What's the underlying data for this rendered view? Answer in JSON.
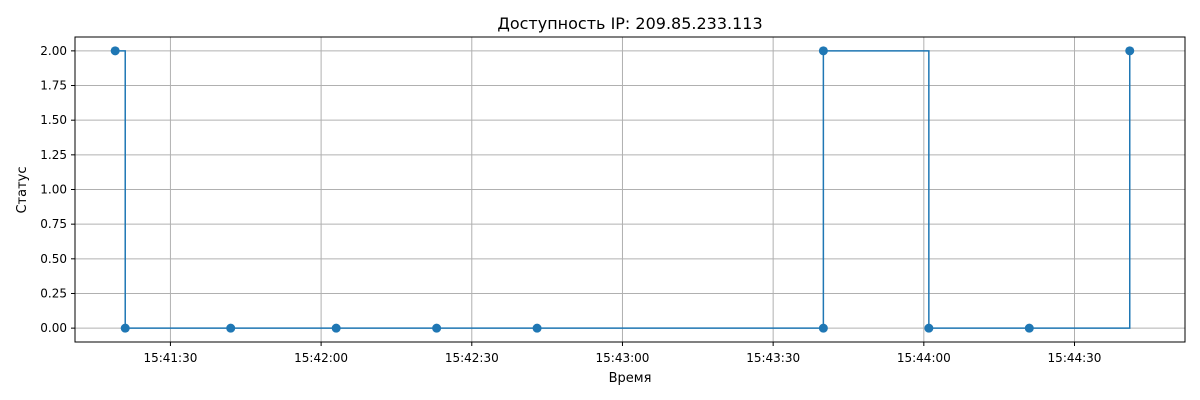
{
  "chart_data": {
    "type": "line",
    "step": "post",
    "title": "Доступность IP: 209.85.233.113",
    "xlabel": "Время",
    "ylabel": "Статус",
    "grid": true,
    "color": "#1f77b4",
    "x_ticks": [
      "15:41:30",
      "15:42:00",
      "15:42:30",
      "15:43:00",
      "15:43:30",
      "15:44:00",
      "15:44:30"
    ],
    "y_ticks": [
      "0.00",
      "0.25",
      "0.50",
      "0.75",
      "1.00",
      "1.25",
      "1.50",
      "1.75",
      "2.00"
    ],
    "xlim": [
      "15:41:11",
      "15:44:52"
    ],
    "ylim": [
      -0.1,
      2.1
    ],
    "series": [
      {
        "x": [
          "15:41:19",
          "15:41:21",
          "15:41:42",
          "15:42:03",
          "15:42:23",
          "15:42:43",
          "15:43:40",
          "15:43:40",
          "15:44:01",
          "15:44:21",
          "15:44:41"
        ],
        "y": [
          2,
          0,
          0,
          0,
          0,
          0,
          0,
          2,
          0,
          0,
          2
        ]
      }
    ]
  }
}
